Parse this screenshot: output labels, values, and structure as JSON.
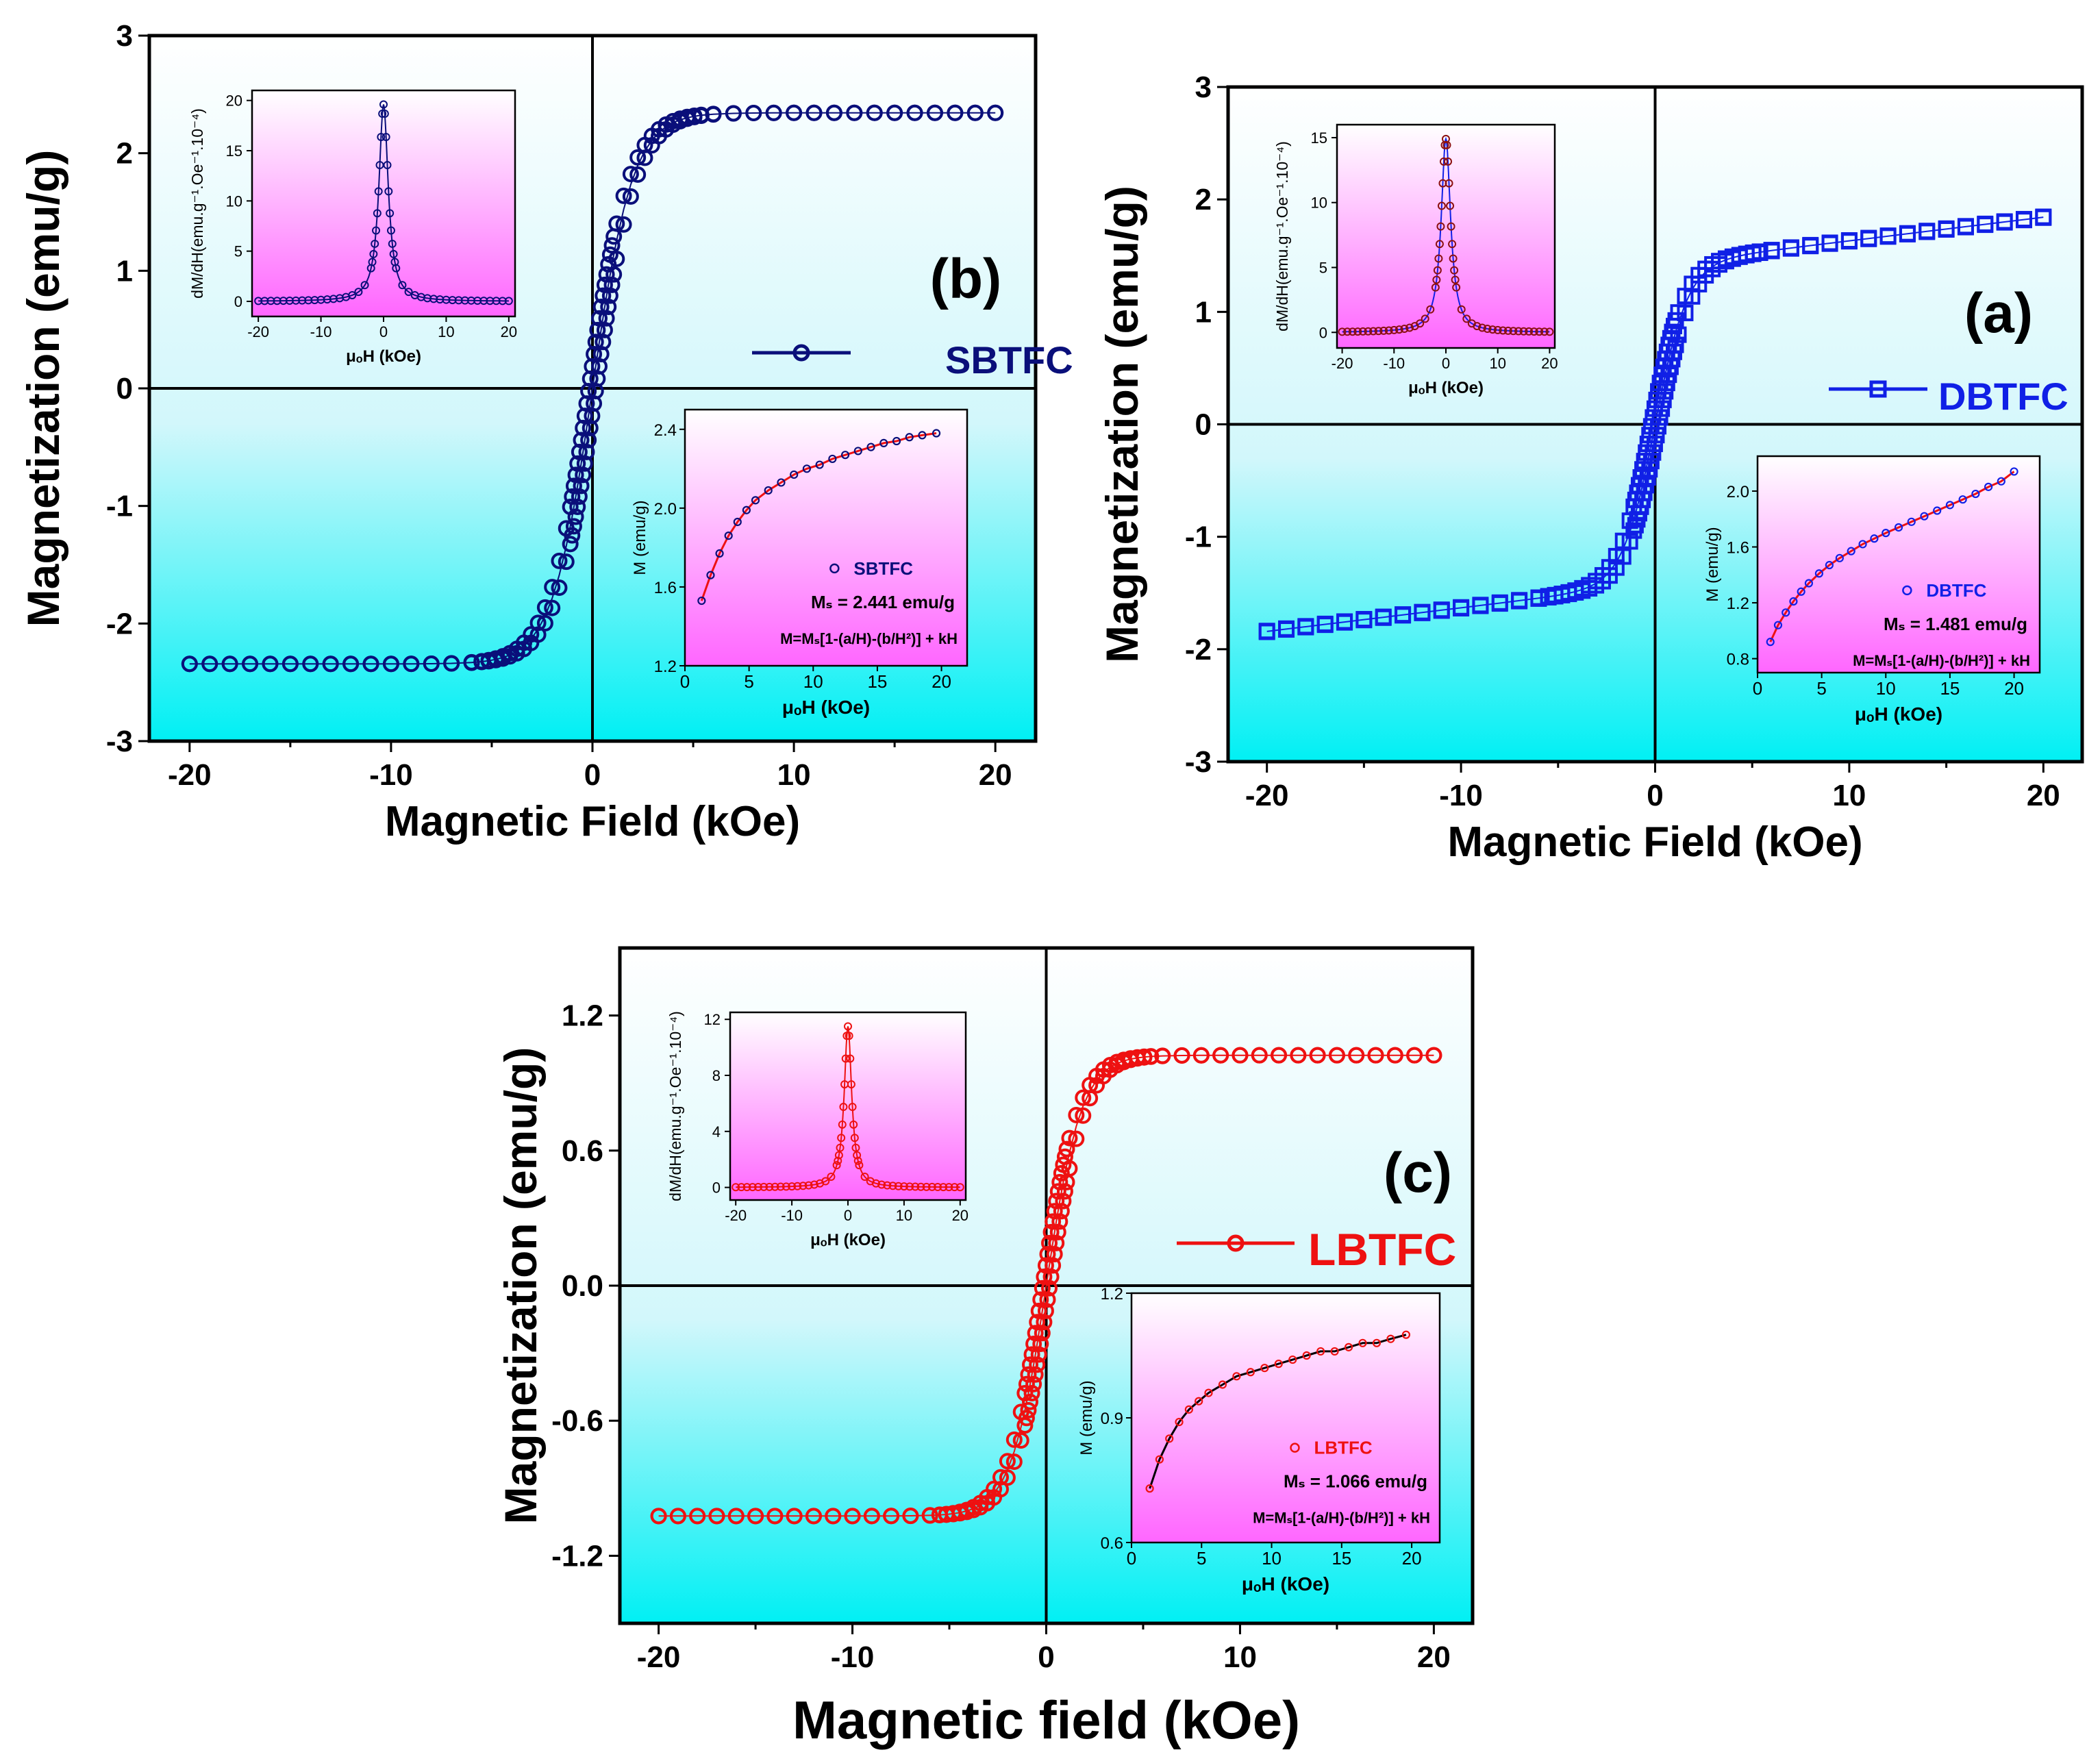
{
  "chart_data": [
    {
      "id": "b",
      "type": "scatter",
      "panel_label": "(b)",
      "legend_label": "SBTFC",
      "color": "#0a0f7a",
      "marker": "circle",
      "xlabel": "Magnetic Field (kOe)",
      "ylabel": "Magnetization (emu/g)",
      "xlim": [
        -22,
        22
      ],
      "ylim": [
        -3,
        3
      ],
      "xticks": [
        -20,
        -10,
        0,
        10,
        20
      ],
      "yticks": [
        -3,
        -2,
        -1,
        0,
        1,
        2,
        3
      ],
      "xtick_labels": [
        "-20",
        "-10",
        "0",
        "10",
        "20"
      ],
      "ytick_labels": [
        "-3",
        "-2",
        "-1",
        "0",
        "1",
        "2",
        "3"
      ],
      "Ms": 2.441,
      "shape_k": 0.5,
      "inset_derivative": {
        "ylabel": "dM/dH(emu.g⁻¹.Oe⁻¹.10⁻⁴)",
        "xlabel": "μₒH (kOe)",
        "xlim": [
          -21,
          21
        ],
        "ylim": [
          -1.5,
          21
        ],
        "xticks": [
          -20,
          -10,
          0,
          10,
          20
        ],
        "yticks": [
          0,
          5,
          10,
          15,
          20
        ],
        "ytick_labels": [
          "0",
          "5",
          "10",
          "15",
          "20"
        ],
        "peak": 19.6,
        "width": 0.9
      },
      "inset_fit": {
        "ylabel": "M (emu/g)",
        "xlabel": "μₒH (kOe)",
        "xlim": [
          0,
          22
        ],
        "ylim": [
          1.2,
          2.5
        ],
        "xticks": [
          0,
          5,
          10,
          15,
          20
        ],
        "yticks": [
          1.2,
          1.6,
          2.0,
          2.4
        ],
        "ytick_labels": [
          "1.2",
          "1.6",
          "2.0",
          "2.4"
        ],
        "h": [
          1.3,
          2.0,
          2.7,
          3.4,
          4.1,
          4.8,
          5.5,
          6.5,
          7.5,
          8.5,
          9.5,
          10.5,
          11.5,
          12.5,
          13.5,
          14.5,
          15.5,
          16.5,
          17.5,
          18.5,
          19.6
        ],
        "m": [
          1.53,
          1.66,
          1.77,
          1.86,
          1.93,
          1.99,
          2.04,
          2.09,
          2.13,
          2.17,
          2.2,
          2.22,
          2.25,
          2.27,
          2.29,
          2.31,
          2.33,
          2.34,
          2.36,
          2.37,
          2.38
        ],
        "legend_label": "SBTFC",
        "ms_text": "Mₛ = 2.441 emu/g",
        "formula": "M=Mₛ[1-(a/H)-(b/H²)] + kH"
      }
    },
    {
      "id": "a",
      "type": "scatter",
      "panel_label": "(a)",
      "legend_label": "DBTFC",
      "color": "#1020e6",
      "marker": "square",
      "xlabel": "Magnetic Field (kOe)",
      "ylabel": "Magnetization (emu/g)",
      "xlim": [
        -22,
        22
      ],
      "ylim": [
        -3,
        3
      ],
      "xticks": [
        -20,
        -10,
        0,
        10,
        20
      ],
      "yticks": [
        -3,
        -2,
        -1,
        0,
        1,
        2,
        3
      ],
      "xtick_labels": [
        "-20",
        "-10",
        "0",
        "10",
        "20"
      ],
      "ytick_labels": [
        "-3",
        "-2",
        "-1",
        "0",
        "1",
        "2",
        "3"
      ],
      "Ms": 1.481,
      "shape_k": 0.6,
      "slope_k": 0.035,
      "inset_derivative": {
        "ylabel": "dM/dH(emu.g⁻¹.Oe⁻¹.10⁻⁴)",
        "xlabel": "μₒH (kOe)",
        "xlim": [
          -21,
          21
        ],
        "ylim": [
          -1.2,
          16
        ],
        "xticks": [
          -20,
          -10,
          0,
          10,
          20
        ],
        "yticks": [
          0,
          5,
          10,
          15
        ],
        "ytick_labels": [
          "0",
          "5",
          "10",
          "15"
        ],
        "peak": 14.9,
        "width": 1.1
      },
      "inset_fit": {
        "ylabel": "M (emu/g)",
        "xlabel": "μₒH (kOe)",
        "xlim": [
          0,
          22
        ],
        "ylim": [
          0.7,
          2.25
        ],
        "xticks": [
          0,
          5,
          10,
          15,
          20
        ],
        "yticks": [
          0.8,
          1.2,
          1.6,
          2.0
        ],
        "ytick_labels": [
          "0.8",
          "1.2",
          "1.6",
          "2.0"
        ],
        "h": [
          1.0,
          1.6,
          2.2,
          2.8,
          3.4,
          4.0,
          4.8,
          5.6,
          6.4,
          7.3,
          8.2,
          9.1,
          10.0,
          11.0,
          12.0,
          13.0,
          14.0,
          15.0,
          16.0,
          17.0,
          18.0,
          19.0,
          20.0
        ],
        "m": [
          0.92,
          1.04,
          1.13,
          1.21,
          1.28,
          1.34,
          1.41,
          1.47,
          1.52,
          1.57,
          1.62,
          1.66,
          1.7,
          1.74,
          1.78,
          1.82,
          1.86,
          1.9,
          1.94,
          1.98,
          2.03,
          2.07,
          2.14
        ],
        "legend_label": "DBTFC",
        "ms_text": "Mₛ = 1.481 emu/g",
        "formula": "M=Mₛ[1-(a/H)-(b/H²)] + kH"
      }
    },
    {
      "id": "c",
      "type": "scatter",
      "panel_label": "(c)",
      "legend_label": "LBTFC",
      "color": "#ee1111",
      "marker": "circle",
      "xlabel": "Magnetic field (kOe)",
      "ylabel": "Magnetization (emu/g)",
      "xlim": [
        -22,
        22
      ],
      "ylim": [
        -1.5,
        1.5
      ],
      "xticks": [
        -20,
        -10,
        0,
        10,
        20
      ],
      "yticks": [
        -1.2,
        -0.6,
        0.0,
        0.6,
        1.2
      ],
      "xtick_labels": [
        "-20",
        "-10",
        "0",
        "10",
        "20"
      ],
      "ytick_labels": [
        "-1.2",
        "-0.6",
        "0.0",
        "0.6",
        "1.2"
      ],
      "Ms": 1.066,
      "shape_k": 0.55,
      "inset_derivative": {
        "ylabel": "dM/dH(emu.g⁻¹.Oe⁻¹.10⁻⁴)",
        "xlabel": "μₒH (kOe)",
        "xlim": [
          -21,
          21
        ],
        "ylim": [
          -0.9,
          12.5
        ],
        "xticks": [
          -20,
          -10,
          0,
          10,
          20
        ],
        "yticks": [
          0,
          4,
          8,
          12
        ],
        "ytick_labels": [
          "0",
          "4",
          "8",
          "12"
        ],
        "peak": 11.5,
        "width": 0.8
      },
      "inset_fit": {
        "ylabel": "M (emu/g)",
        "xlabel": "μₒH (kOe)",
        "xlim": [
          0,
          22
        ],
        "ylim": [
          0.6,
          1.2
        ],
        "xticks": [
          0,
          5,
          10,
          15,
          20
        ],
        "yticks": [
          0.6,
          0.9,
          1.2
        ],
        "ytick_labels": [
          "0.6",
          "0.9",
          "1.2"
        ],
        "h": [
          1.3,
          2.0,
          2.7,
          3.4,
          4.1,
          4.8,
          5.5,
          6.5,
          7.5,
          8.5,
          9.5,
          10.5,
          11.5,
          12.5,
          13.5,
          14.5,
          15.5,
          16.5,
          17.5,
          18.5,
          19.6
        ],
        "m": [
          0.73,
          0.8,
          0.85,
          0.89,
          0.92,
          0.94,
          0.96,
          0.98,
          1.0,
          1.01,
          1.02,
          1.03,
          1.04,
          1.05,
          1.06,
          1.06,
          1.07,
          1.08,
          1.08,
          1.09,
          1.1
        ],
        "legend_label": "LBTFC",
        "ms_text": "Mₛ = 1.066 emu/g",
        "formula": "M=Mₛ[1-(a/H)-(b/H²)] + kH"
      }
    }
  ]
}
